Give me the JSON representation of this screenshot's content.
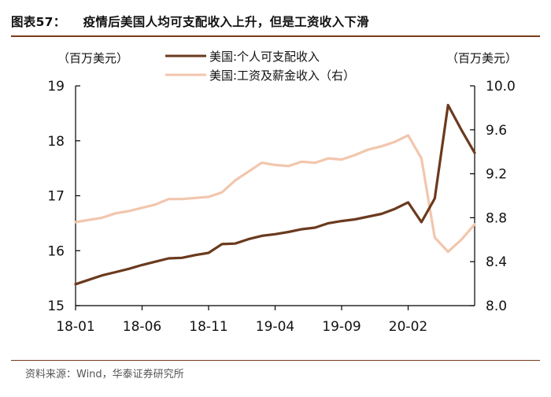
{
  "header": {
    "figure_label": "图表57：",
    "title": "疫情后美国人均可支配收入上升，但是工资收入下滑"
  },
  "source": "资料来源：Wind，华泰证券研究所",
  "colors": {
    "disposable": "#6b3a1e",
    "wages": "#f2c6ad",
    "axis": "#000000",
    "rule": "#7a3b1b"
  },
  "chart_data": {
    "type": "line",
    "y_left_unit": "（百万美元）",
    "y_right_unit": "（百万美元）",
    "y_left": {
      "min": 15,
      "max": 19,
      "ticks": [
        "15",
        "16",
        "17",
        "18",
        "19"
      ]
    },
    "y_right": {
      "min": 8.0,
      "max": 10.0,
      "ticks": [
        "8.0",
        "8.4",
        "8.8",
        "9.2",
        "9.6",
        "10.0"
      ]
    },
    "x_ticks": [
      {
        "index": 0,
        "label": "18-01"
      },
      {
        "index": 5,
        "label": "18-06"
      },
      {
        "index": 10,
        "label": "18-11"
      },
      {
        "index": 15,
        "label": "19-04"
      },
      {
        "index": 20,
        "label": "19-09"
      },
      {
        "index": 25,
        "label": "20-02"
      }
    ],
    "x_count": 31,
    "series": [
      {
        "name": "美国:个人可支配收入",
        "axis": "left",
        "values": [
          15.39,
          15.47,
          15.55,
          15.61,
          15.67,
          15.74,
          15.8,
          15.86,
          15.87,
          15.92,
          15.96,
          16.12,
          16.13,
          16.21,
          16.27,
          16.3,
          16.34,
          16.39,
          16.42,
          16.5,
          16.54,
          16.57,
          16.62,
          16.67,
          16.76,
          16.88,
          16.52,
          16.95,
          18.65,
          18.2,
          17.78
        ]
      },
      {
        "name": "美国:工资及薪金收入（右）",
        "axis": "right",
        "values": [
          8.76,
          8.78,
          8.8,
          8.84,
          8.86,
          8.89,
          8.92,
          8.97,
          8.97,
          8.98,
          8.99,
          9.03,
          9.14,
          9.22,
          9.3,
          9.28,
          9.27,
          9.31,
          9.3,
          9.34,
          9.33,
          9.37,
          9.42,
          9.45,
          9.49,
          9.55,
          9.34,
          8.62,
          8.49,
          8.6,
          8.74
        ]
      }
    ]
  }
}
